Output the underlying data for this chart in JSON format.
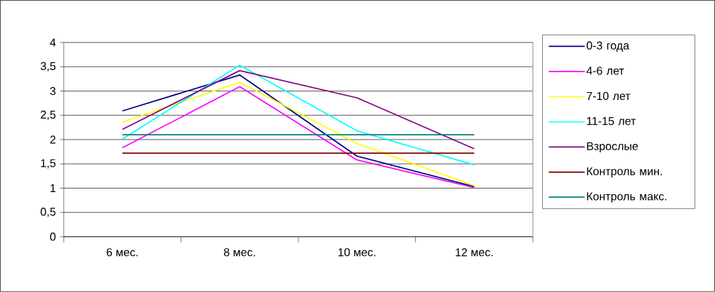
{
  "chart_data": {
    "type": "line",
    "categories": [
      "6 мес.",
      "8 мес.",
      "10 мес.",
      "12 мес."
    ],
    "series": [
      {
        "name": "0-3 года",
        "color": "#000080",
        "values": [
          2.59,
          3.33,
          1.66,
          1.03
        ]
      },
      {
        "name": "4-6 лет",
        "color": "#ff00ff",
        "values": [
          1.83,
          3.09,
          1.58,
          1.01
        ]
      },
      {
        "name": "7-10 лет",
        "color": "#ffff00",
        "values": [
          2.36,
          3.18,
          1.92,
          1.05
        ]
      },
      {
        "name": "11-15 лет",
        "color": "#00ffff",
        "values": [
          2.01,
          3.53,
          2.18,
          1.48
        ]
      },
      {
        "name": "Взрослые",
        "color": "#800080",
        "values": [
          2.21,
          3.42,
          2.86,
          1.81
        ]
      },
      {
        "name": "Контроль мин.",
        "color": "#800000",
        "values": [
          1.72,
          1.72,
          1.72,
          1.72
        ]
      },
      {
        "name": "Контроль макс.",
        "color": "#008080",
        "values": [
          2.1,
          2.1,
          2.1,
          2.1
        ]
      }
    ],
    "ylim": [
      0,
      4
    ],
    "yticks": [
      {
        "value": 0,
        "label": "0"
      },
      {
        "value": 0.5,
        "label": "0,5"
      },
      {
        "value": 1,
        "label": "1"
      },
      {
        "value": 1.5,
        "label": "1,5"
      },
      {
        "value": 2,
        "label": "2"
      },
      {
        "value": 2.5,
        "label": "2,5"
      },
      {
        "value": 3,
        "label": "3"
      },
      {
        "value": 3.5,
        "label": "3,5"
      },
      {
        "value": 4,
        "label": "4"
      }
    ],
    "grid": "y",
    "legend": "right",
    "marker": "none",
    "line_style": "solid"
  }
}
